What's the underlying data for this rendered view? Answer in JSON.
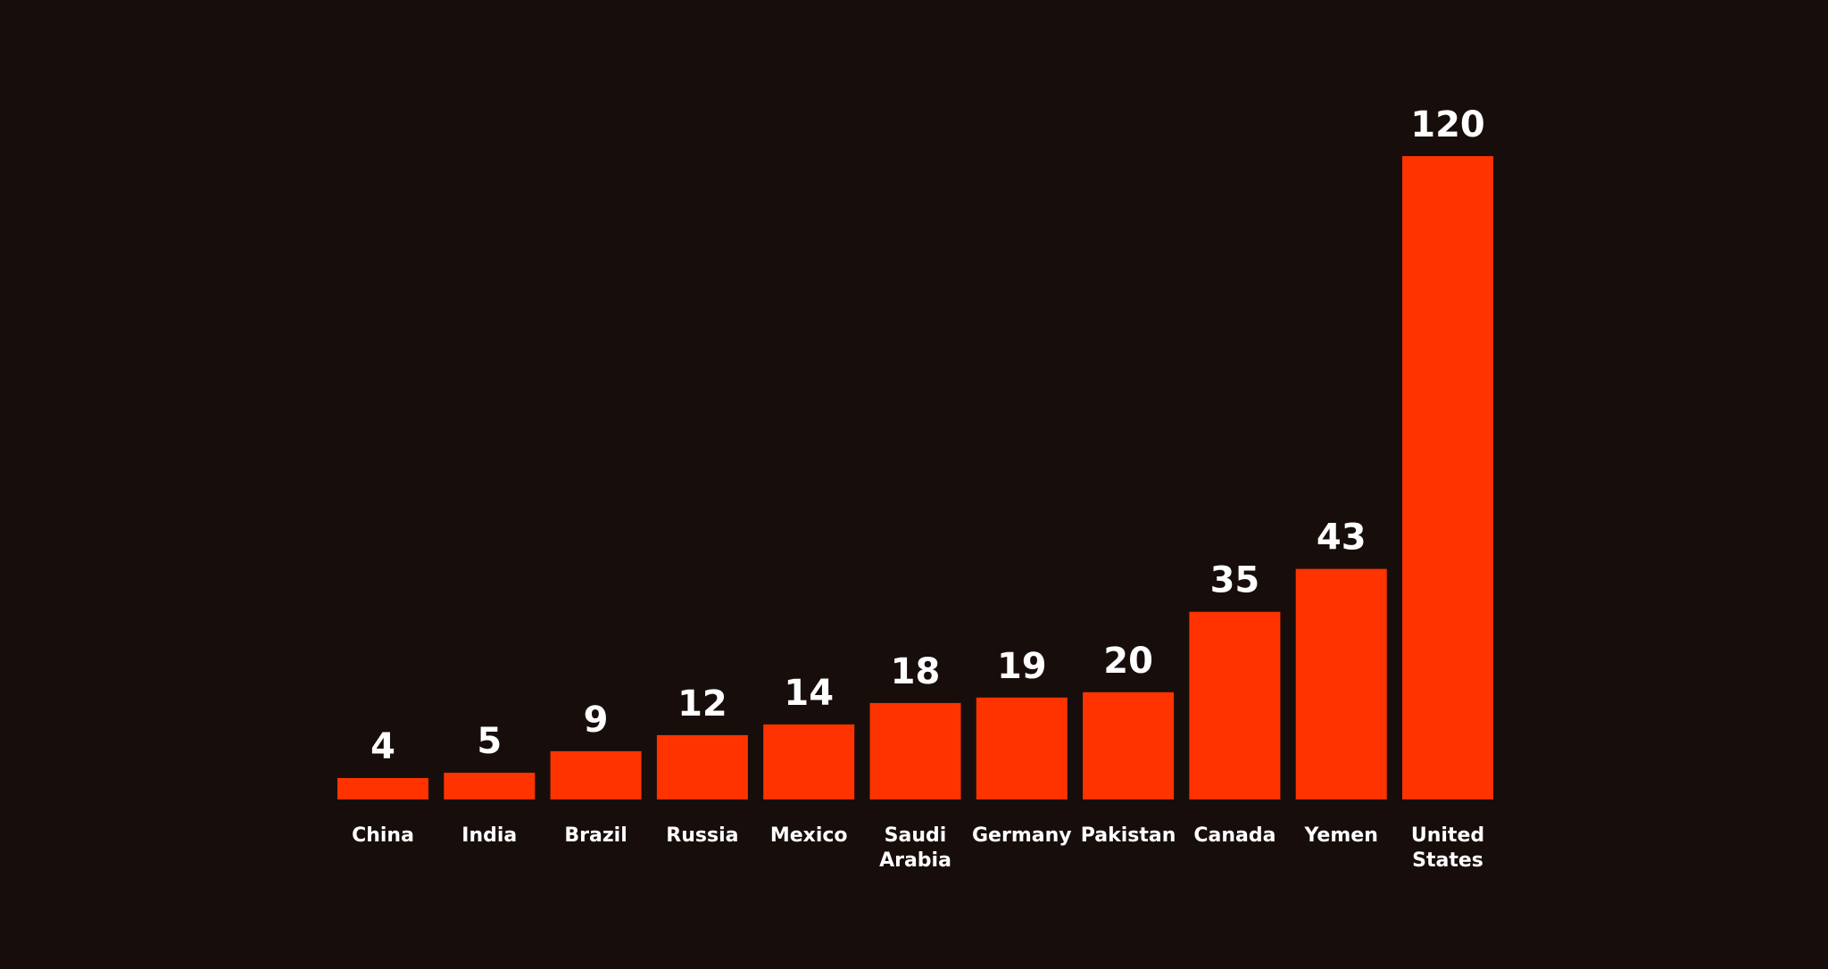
{
  "theme": {
    "background": "#170e0c",
    "bar_color": "#ff3300",
    "text_color": "#ffffff"
  },
  "chart_data": {
    "type": "bar",
    "title": "",
    "xlabel": "",
    "ylabel": "",
    "categories": [
      "China",
      "India",
      "Brazil",
      "Russia",
      "Mexico",
      "Saudi Arabia",
      "Germany",
      "Pakistan",
      "Canada",
      "Yemen",
      "United States"
    ],
    "category_lines": [
      [
        "China"
      ],
      [
        "India"
      ],
      [
        "Brazil"
      ],
      [
        "Russia"
      ],
      [
        "Mexico"
      ],
      [
        "Saudi",
        "Arabia"
      ],
      [
        "Germany"
      ],
      [
        "Pakistan"
      ],
      [
        "Canada"
      ],
      [
        "Yemen"
      ],
      [
        "United",
        "States"
      ]
    ],
    "values": [
      4,
      5,
      9,
      12,
      14,
      18,
      19,
      20,
      35,
      43,
      120
    ],
    "ylim": [
      0,
      120
    ],
    "grid": false,
    "legend": "none",
    "data_labels": true
  }
}
